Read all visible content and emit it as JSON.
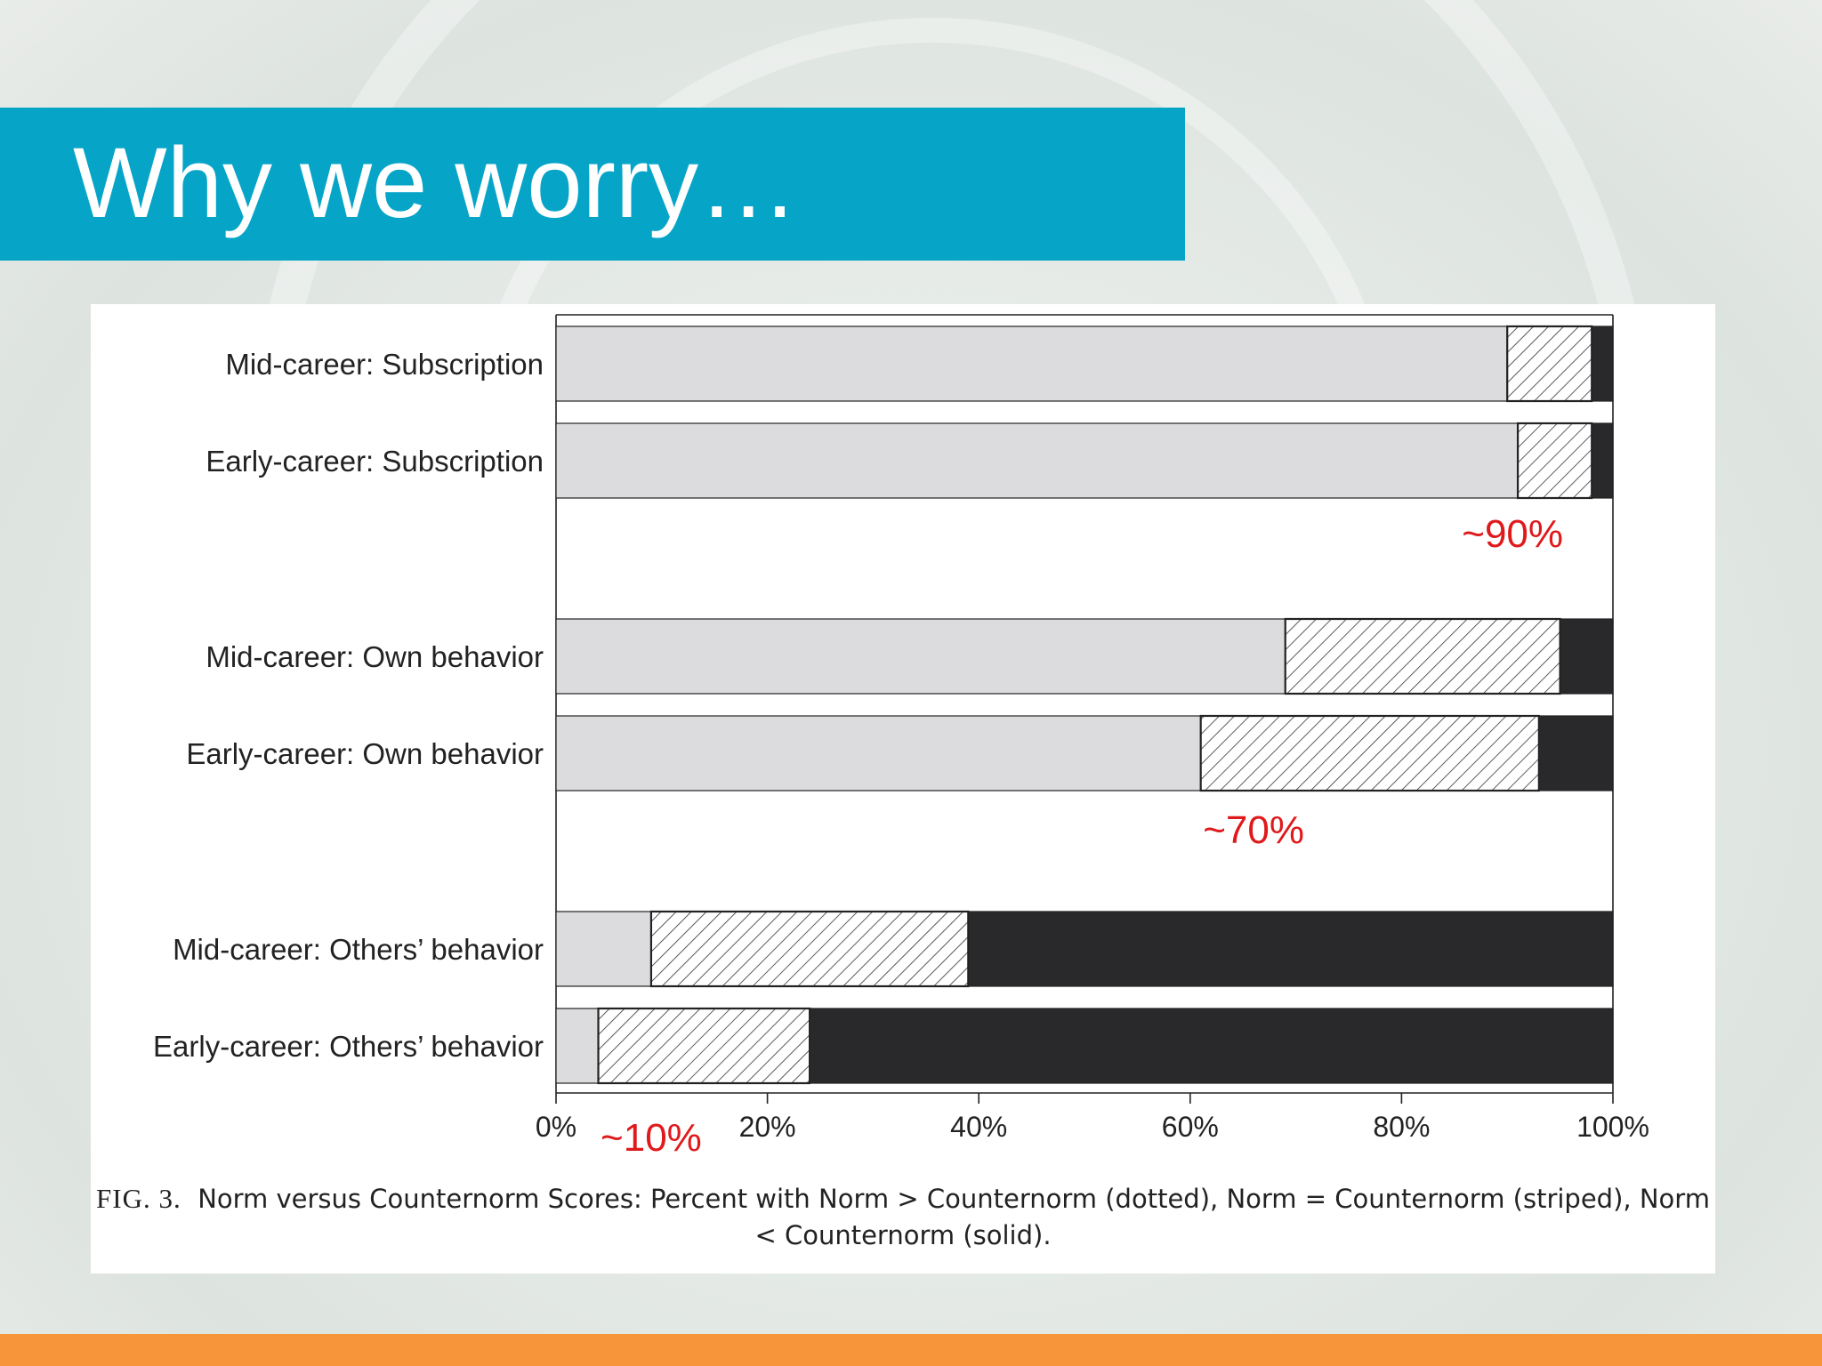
{
  "slide": {
    "title": "Why we worry…",
    "banner_color": "#06a5c8",
    "bar_color": "#f7953a"
  },
  "caption": {
    "fig_label": "FIG. 3.",
    "text": "Norm versus Counternorm Scores: Percent with Norm > Counternorm (dotted), Norm = Counternorm (striped), Norm < Counternorm (solid)."
  },
  "chart_data": {
    "type": "bar",
    "orientation": "horizontal",
    "stacked": true,
    "categories": [
      "Mid-career: Subscription",
      "Early-career: Subscription",
      "Mid-career: Own behavior",
      "Early-career: Own behavior",
      "Mid-career: Others’ behavior",
      "Early-career: Others’ behavior"
    ],
    "series": [
      {
        "key": "dotted",
        "values": [
          90,
          91,
          69,
          61,
          9,
          4
        ],
        "color": "#dcdcde"
      },
      {
        "key": "striped",
        "values": [
          8,
          7,
          26,
          32,
          30,
          20
        ],
        "color": "#ffffff"
      },
      {
        "key": "solid",
        "values": [
          2,
          2,
          5,
          7,
          61,
          76
        ],
        "color": "#29282b"
      }
    ],
    "x_ticks": [
      "0%",
      "20%",
      "40%",
      "60%",
      "80%",
      "100%"
    ],
    "xlim": [
      0,
      100
    ],
    "annotations": [
      {
        "text": "~90%",
        "x": 90.5,
        "after_row": 1,
        "color": "#e0191b"
      },
      {
        "text": "~70%",
        "x": 66,
        "after_row": 3,
        "color": "#e0191b"
      },
      {
        "text": "~10%",
        "x": 9,
        "after_row": 5,
        "color": "#e0191b"
      }
    ]
  }
}
